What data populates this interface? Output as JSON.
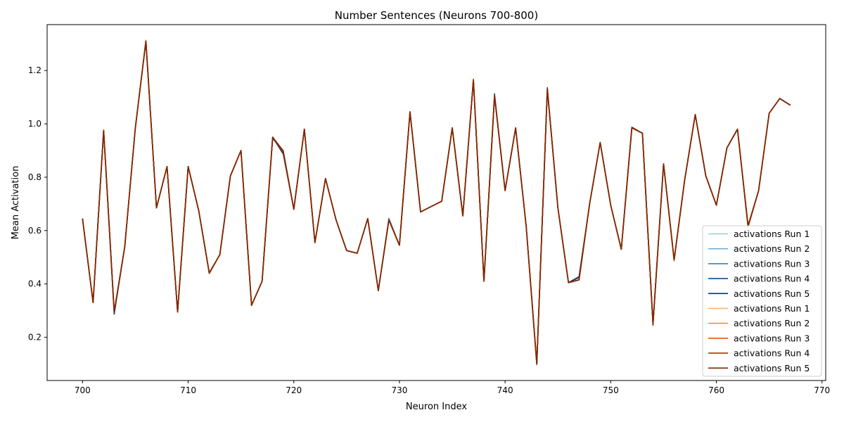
{
  "chart_data": {
    "type": "line",
    "title": "Number Sentences (Neurons 700-800)",
    "xlabel": "Neuron Index",
    "ylabel": "Mean Activation",
    "xlim": [
      696.65,
      770.35
    ],
    "ylim": [
      0.038,
      1.372
    ],
    "xticks": [
      700,
      710,
      720,
      730,
      740,
      750,
      760,
      770
    ],
    "yticks": [
      0.2,
      0.4,
      0.6,
      0.8,
      1.0,
      1.2
    ],
    "ytick_labels": [
      "0.2",
      "0.4",
      "0.6",
      "0.8",
      "1.0",
      "1.2"
    ],
    "grid": false,
    "legend_position": "bottom-right",
    "x": [
      700,
      701,
      702,
      703,
      704,
      705,
      706,
      707,
      708,
      709,
      710,
      711,
      712,
      713,
      714,
      715,
      716,
      717,
      718,
      719,
      720,
      721,
      722,
      723,
      724,
      725,
      726,
      727,
      728,
      729,
      730,
      731,
      732,
      733,
      734,
      735,
      736,
      737,
      738,
      739,
      740,
      741,
      742,
      743,
      744,
      745,
      746,
      747,
      748,
      749,
      750,
      751,
      752,
      753,
      754,
      755,
      756,
      757,
      758,
      759,
      760,
      761,
      762,
      763,
      764,
      765,
      766,
      767
    ],
    "base_values": [
      0.645,
      0.33,
      0.975,
      0.295,
      0.54,
      0.985,
      1.31,
      0.685,
      0.84,
      0.295,
      0.84,
      0.675,
      0.44,
      0.51,
      0.805,
      0.9,
      0.32,
      0.41,
      0.95,
      0.895,
      0.68,
      0.98,
      0.555,
      0.795,
      0.64,
      0.525,
      0.515,
      0.645,
      0.375,
      0.64,
      0.545,
      1.045,
      0.67,
      0.69,
      0.71,
      0.985,
      0.655,
      1.165,
      0.41,
      1.105,
      0.75,
      0.985,
      0.615,
      0.1,
      1.13,
      0.685,
      0.405,
      0.415,
      0.7,
      0.93,
      0.695,
      0.53,
      0.985,
      0.965,
      0.25,
      0.85,
      0.49,
      0.79,
      1.035,
      0.805,
      0.695,
      0.91,
      0.98,
      0.615,
      0.75,
      1.04,
      1.095,
      1.07
    ],
    "series": [
      {
        "name": "activations Run 1",
        "color": "#9ecae1",
        "offsets": [
          {
            "i": 3,
            "d": -0.006
          },
          {
            "i": 9,
            "d": 0.004
          },
          {
            "i": 54,
            "d": 0.006
          }
        ]
      },
      {
        "name": "activations Run 2",
        "color": "#6baed6",
        "offsets": [
          {
            "i": 19,
            "d": 0.004
          },
          {
            "i": 43,
            "d": -0.004
          }
        ]
      },
      {
        "name": "activations Run 3",
        "color": "#3182bd",
        "offsets": [
          {
            "i": 29,
            "d": 0.006
          },
          {
            "i": 47,
            "d": 0.008
          }
        ]
      },
      {
        "name": "activations Run 4",
        "color": "#08519c",
        "offsets": [
          {
            "i": 39,
            "d": 0.008
          },
          {
            "i": 44,
            "d": 0.006
          },
          {
            "i": 18,
            "d": -0.004
          }
        ]
      },
      {
        "name": "activations Run 5",
        "color": "#08306b",
        "offsets": [
          {
            "i": 19,
            "d": -0.008
          },
          {
            "i": 3,
            "d": -0.008
          },
          {
            "i": 47,
            "d": 0.012
          }
        ]
      },
      {
        "name": "activations Run 1",
        "color": "#fdae6b",
        "offsets": [
          {
            "i": 2,
            "d": 0.004
          },
          {
            "i": 56,
            "d": -0.006
          }
        ]
      },
      {
        "name": "activations Run 2",
        "color": "#fd8d3c",
        "offsets": [
          {
            "i": 6,
            "d": 0.004
          },
          {
            "i": 37,
            "d": 0.004
          }
        ]
      },
      {
        "name": "activations Run 3",
        "color": "#e6550d",
        "offsets": [
          {
            "i": 63,
            "d": 0.006
          },
          {
            "i": 12,
            "d": 0.003
          }
        ]
      },
      {
        "name": "activations Run 4",
        "color": "#a63603",
        "offsets": [
          {
            "i": 43,
            "d": 0.004
          },
          {
            "i": 52,
            "d": 0.003
          }
        ]
      },
      {
        "name": "activations Run 5",
        "color": "#7f2704",
        "offsets": [
          {
            "i": 54,
            "d": -0.005
          },
          {
            "i": 38,
            "d": 0.003
          },
          {
            "i": 19,
            "d": 0.004
          }
        ]
      }
    ]
  }
}
